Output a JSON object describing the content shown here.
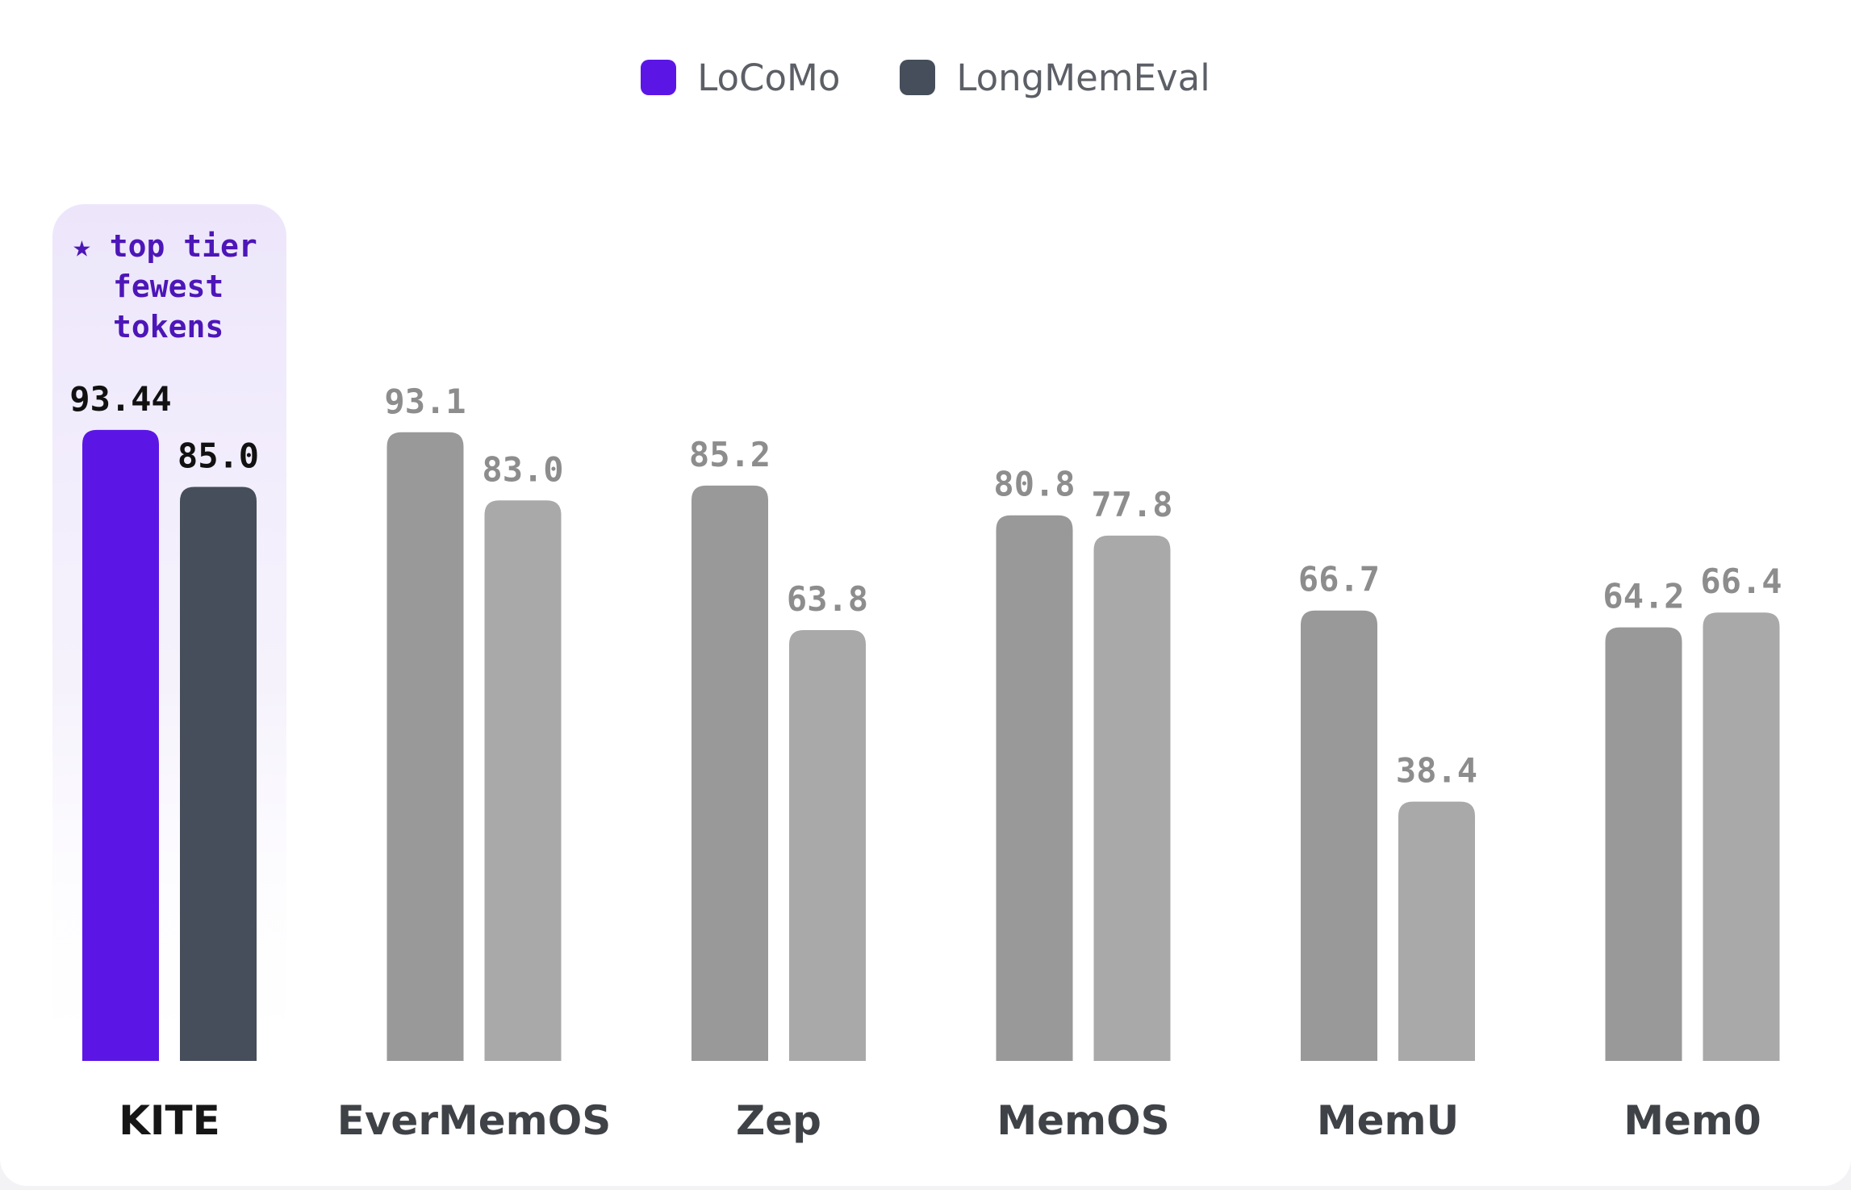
{
  "chart_data": {
    "type": "bar",
    "categories": [
      "KITE",
      "EverMemOS",
      "Zep",
      "MemOS",
      "MemU",
      "Mem0"
    ],
    "series": [
      {
        "name": "LoCoMo",
        "values": [
          93.44,
          93.1,
          85.2,
          80.8,
          66.7,
          64.2
        ],
        "labels": [
          "93.44",
          "93.1",
          "85.2",
          "80.8",
          "66.7",
          "64.2"
        ]
      },
      {
        "name": "LongMemEval",
        "values": [
          85.0,
          83.0,
          63.8,
          77.8,
          38.4,
          66.4
        ],
        "labels": [
          "85.0",
          "83.0",
          "63.8",
          "77.8",
          "38.4",
          "66.4"
        ]
      }
    ],
    "highlight": {
      "category": "KITE",
      "badge_lines": [
        "★ top tier",
        "fewest",
        "tokens"
      ]
    },
    "ylim": [
      0,
      100
    ],
    "grid": false,
    "legend_position": "top-center",
    "colors": {
      "highlight_series": [
        "#5b16e6",
        "#454e5a"
      ],
      "other_series": [
        "#999999",
        "#a9a9a9"
      ],
      "highlight_label": "#111111",
      "other_label": "#8d8d8d",
      "badge_text": "#4d16b8",
      "highlight_category_text": "#161616",
      "other_category_text": "#3f4247",
      "highlight_background": "#ede6fb"
    }
  }
}
